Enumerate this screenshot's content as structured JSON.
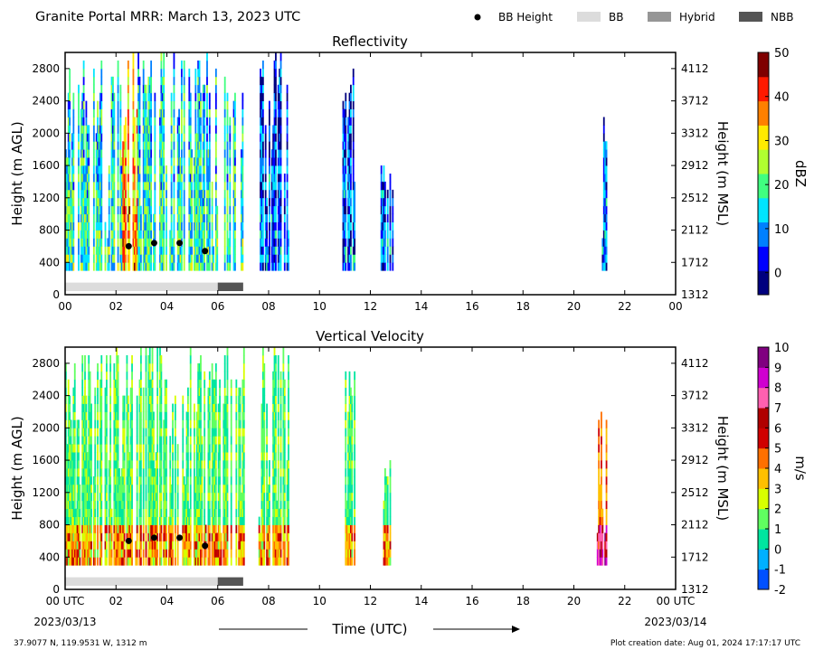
{
  "header": {
    "title": "Granite Portal MRR:  March 13, 2023 UTC",
    "legend": [
      {
        "label": "BB Height",
        "marker": "dot",
        "color": "#000000"
      },
      {
        "label": "BB",
        "marker": "box",
        "color": "#dcdcdc"
      },
      {
        "label": "Hybrid",
        "marker": "box",
        "color": "#969696"
      },
      {
        "label": "NBB",
        "marker": "box",
        "color": "#555555"
      }
    ]
  },
  "footer": {
    "location": "37.9077 N, 119.9531 W, 1312 m",
    "creation": "Plot creation date: Aug 01, 2024 17:17:17 UTC",
    "xlabel": "Time (UTC)",
    "start_date": "2023/03/13",
    "end_date": "2023/03/14"
  },
  "chart_data": [
    {
      "type": "heatmap",
      "title": "Reflectivity",
      "ylabel_left": "Height (m AGL)",
      "ylabel_right": "Height (m MSL)",
      "xlim": [
        0,
        24
      ],
      "ylim": [
        0,
        3000
      ],
      "x_tick_labels": [
        "00",
        "02",
        "04",
        "06",
        "08",
        "10",
        "12",
        "14",
        "16",
        "18",
        "20",
        "22",
        "00"
      ],
      "y_ticks_agl": [
        0,
        400,
        800,
        1200,
        1600,
        2000,
        2400,
        2800
      ],
      "y_ticks_msl": [
        "1312",
        "1712",
        "2112",
        "2512",
        "2912",
        "3312",
        "3712",
        "4112"
      ],
      "colorbar": {
        "label": "dBZ",
        "range": [
          -5,
          50
        ],
        "ticks": [
          0,
          10,
          20,
          30,
          40,
          50
        ],
        "colors": [
          "#00007f",
          "#0000ff",
          "#0080ff",
          "#00e5ff",
          "#40ff80",
          "#b0ff30",
          "#ffea00",
          "#ff8000",
          "#ff1a00",
          "#7f0000"
        ]
      },
      "bright_band_height": [
        {
          "time": 2.5,
          "height": 600
        },
        {
          "time": 3.5,
          "height": 640
        },
        {
          "time": 4.5,
          "height": 640
        },
        {
          "time": 5.5,
          "height": 540
        }
      ],
      "bb_classification": [
        {
          "start": 0,
          "end": 6,
          "class": "BB"
        },
        {
          "start": 6,
          "end": 7,
          "class": "NBB"
        }
      ]
    },
    {
      "type": "heatmap",
      "title": "Vertical Velocity",
      "ylabel_left": "Height (m AGL)",
      "ylabel_right": "Height (m MSL)",
      "xlim": [
        0,
        24
      ],
      "ylim": [
        0,
        3000
      ],
      "x_tick_labels": [
        "00 UTC",
        "02",
        "04",
        "06",
        "08",
        "10",
        "12",
        "14",
        "16",
        "18",
        "20",
        "22",
        "00 UTC"
      ],
      "y_ticks_agl": [
        0,
        400,
        800,
        1200,
        1600,
        2000,
        2400,
        2800
      ],
      "y_ticks_msl": [
        "1312",
        "1712",
        "2112",
        "2512",
        "2912",
        "3312",
        "3712",
        "4112"
      ],
      "colorbar": {
        "label": "m/s",
        "range": [
          -2,
          10
        ],
        "ticks": [
          -2,
          -1,
          0,
          1,
          2,
          3,
          4,
          5,
          6,
          7,
          8,
          9,
          10
        ],
        "colors": [
          "#0050ff",
          "#00b0ff",
          "#00e6a0",
          "#60ff60",
          "#d8ff00",
          "#ffc000",
          "#ff7000",
          "#d00000",
          "#b00000",
          "#ff60b0",
          "#d000d0",
          "#800080"
        ]
      },
      "bright_band_height": [
        {
          "time": 2.5,
          "height": 600
        },
        {
          "time": 3.5,
          "height": 640
        },
        {
          "time": 4.5,
          "height": 640
        },
        {
          "time": 5.5,
          "height": 540
        }
      ],
      "bb_classification": [
        {
          "start": 0,
          "end": 6,
          "class": "BB"
        },
        {
          "start": 6,
          "end": 7,
          "class": "NBB"
        }
      ]
    }
  ]
}
